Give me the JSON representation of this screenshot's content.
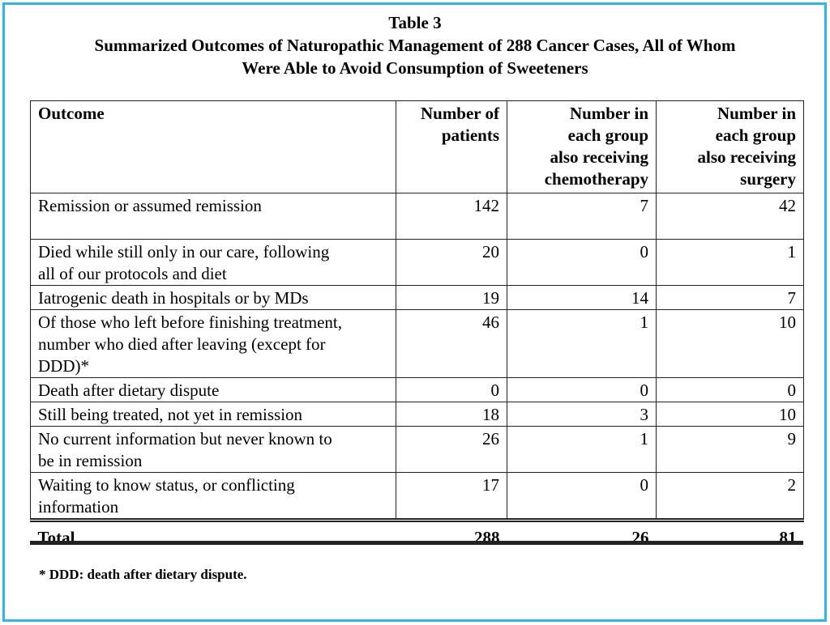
{
  "title": {
    "line1": "Table 3",
    "line2": "Summarized Outcomes of Naturopathic Management of 288 Cancer Cases, All of Whom",
    "line3": "Were Able to Avoid Consumption of Sweeteners"
  },
  "table": {
    "headers": [
      [
        "Outcome"
      ],
      [
        "Number of",
        "patients"
      ],
      [
        "Number in",
        "each group",
        "also receiving",
        "chemotherapy"
      ],
      [
        "Number in",
        "each group",
        "also receiving",
        "surgery"
      ]
    ],
    "rows": [
      {
        "outcome": [
          "Remission or assumed remission"
        ],
        "patients": "142",
        "chemo": "7",
        "surgery": "42"
      },
      {
        "outcome": [
          "Died while still only in our care, following",
          "all of our protocols and diet"
        ],
        "patients": "20",
        "chemo": "0",
        "surgery": "1"
      },
      {
        "outcome": [
          "Iatrogenic death in hospitals or by MDs"
        ],
        "patients": "19",
        "chemo": "14",
        "surgery": "7"
      },
      {
        "outcome": [
          "Of those who left before finishing treatment,",
          "number who died after leaving (except for",
          "DDD)*"
        ],
        "patients": "46",
        "chemo": "1",
        "surgery": "10"
      },
      {
        "outcome": [
          "Death after dietary dispute"
        ],
        "patients": "0",
        "chemo": "0",
        "surgery": "0"
      },
      {
        "outcome": [
          "Still being treated, not yet in remission"
        ],
        "patients": "18",
        "chemo": "3",
        "surgery": "10"
      },
      {
        "outcome": [
          "No current information but never known to",
          "be in remission"
        ],
        "patients": "26",
        "chemo": "1",
        "surgery": "9"
      },
      {
        "outcome": [
          "Waiting to know status, or conflicting",
          "information"
        ],
        "patients": "17",
        "chemo": "0",
        "surgery": "2"
      }
    ],
    "total": {
      "label": "Total",
      "patients": "288",
      "chemo": "26",
      "surgery": "81"
    }
  },
  "footnote": "* DDD: death after dietary dispute.",
  "colors": {
    "frame": "#33b5e0"
  }
}
